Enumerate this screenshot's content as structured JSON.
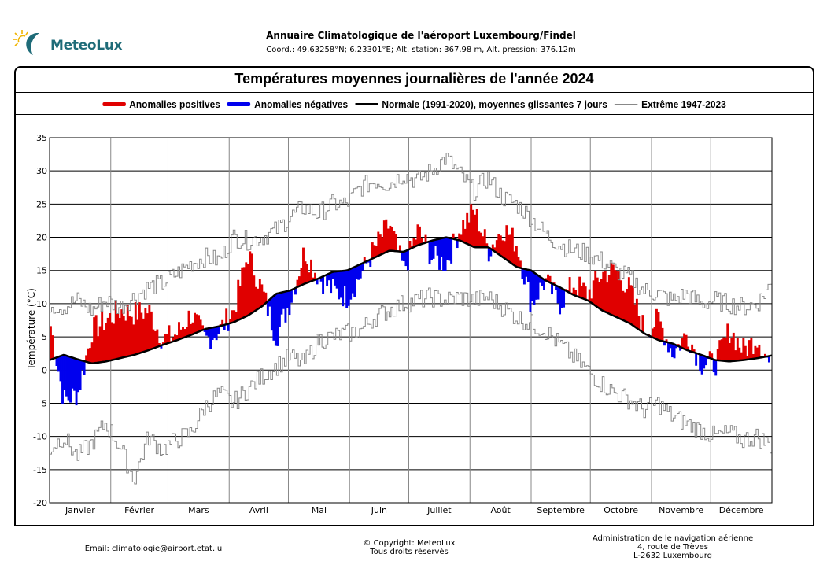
{
  "header": {
    "logo_text": "MeteoLux",
    "title": "Annuaire Climatologique de l'aéroport Luxembourg/Findel",
    "coordinates": "Coord.: 49.63258°N; 6.23301°E; Alt. station: 367.98 m, Alt. pression: 376.12m"
  },
  "footer": {
    "email": "Email: climatologie@airport.etat.lu",
    "copyright_line1": "© Copyright: MeteoLux",
    "copyright_line2": "Tous droits réservés",
    "address_line1": "Administration de le navigation aérienne",
    "address_line2": "4, route de Trèves",
    "address_line3": "L-2632 Luxembourg"
  },
  "chart_data": {
    "type": "bar",
    "title": "Températures moyennes journalières de l'année 2024",
    "xlabel": "",
    "ylabel": "Température (°C)",
    "ylim": [
      -20,
      35
    ],
    "yticks": [
      35,
      30,
      25,
      20,
      15,
      10,
      5,
      0,
      -5,
      -10,
      -15,
      -20
    ],
    "grid": true,
    "legend_position": "top",
    "legend": [
      {
        "label": "Anomalies positives",
        "color": "#e00000",
        "kind": "bar"
      },
      {
        "label": "Anomalies négatives",
        "color": "#0000ee",
        "kind": "bar"
      },
      {
        "label": "Normale (1991-2020), moyennes glissantes 7 jours",
        "color": "#000000",
        "kind": "line"
      },
      {
        "label": "Extrême 1947-2023",
        "color": "#888888",
        "kind": "step"
      }
    ],
    "categories": [
      "Janvier",
      "Février",
      "Mars",
      "Avril",
      "Mai",
      "Juin",
      "Juillet",
      "Août",
      "Septembre",
      "Octobre",
      "Novembre",
      "Décembre"
    ],
    "month_days": [
      31,
      29,
      31,
      30,
      31,
      30,
      31,
      31,
      30,
      31,
      30,
      31
    ],
    "description": "Daily mean temperatures 2024 as anomaly bars against 7-day smoothed normal; values sampled at weekly resolution (approx.)",
    "normal_weekly": [
      1.5,
      2.3,
      1.6,
      1.0,
      1.3,
      1.8,
      2.3,
      3.0,
      3.8,
      4.5,
      5.3,
      6.2,
      6.6,
      7.2,
      8.2,
      9.6,
      11.5,
      12.0,
      13.0,
      13.8,
      14.8,
      15.0,
      16.0,
      17.0,
      18.0,
      17.8,
      18.8,
      19.5,
      20.0,
      19.5,
      18.5,
      18.5,
      17.0,
      15.5,
      15.0,
      13.5,
      12.5,
      11.3,
      10.5,
      9.0,
      8.0,
      7.0,
      5.5,
      4.5,
      4.0,
      3.0,
      2.3,
      1.5,
      1.3,
      1.5,
      1.8,
      2.2
    ],
    "actual_weekly": [
      7.5,
      -4.5,
      -3.5,
      6.0,
      7.5,
      9.0,
      8.5,
      9.0,
      4.5,
      5.5,
      8.5,
      4.5,
      6.0,
      9.0,
      17.5,
      12.0,
      5.0,
      10.5,
      18.0,
      14.0,
      12.0,
      11.0,
      14.5,
      18.5,
      22.0,
      15.0,
      21.0,
      17.0,
      16.0,
      21.5,
      24.0,
      18.0,
      21.5,
      19.0,
      10.0,
      13.5,
      10.0,
      13.0,
      11.5,
      14.5,
      15.0,
      12.0,
      6.0,
      7.5,
      2.5,
      5.5,
      1.0,
      1.0,
      6.0,
      3.0,
      5.0,
      0.0
    ],
    "extreme_max_weekly": [
      10.0,
      9.5,
      10.5,
      9.0,
      10.5,
      9.5,
      11.0,
      12.5,
      13.0,
      14.5,
      16.0,
      17.0,
      16.5,
      20.0,
      19.5,
      20.0,
      21.0,
      23.0,
      24.5,
      23.5,
      25.0,
      25.0,
      27.5,
      28.5,
      28.0,
      29.5,
      28.5,
      30.0,
      32.0,
      29.5,
      27.0,
      29.0,
      26.0,
      25.0,
      23.0,
      20.5,
      19.0,
      18.0,
      17.5,
      16.5,
      15.0,
      14.0,
      12.0,
      11.5,
      10.5,
      11.5,
      10.0,
      10.5,
      10.0,
      9.5,
      10.0,
      13.0
    ],
    "extreme_min_weekly": [
      -12.0,
      -10.0,
      -13.0,
      -11.0,
      -8.0,
      -11.5,
      -16.5,
      -10.0,
      -12.0,
      -10.5,
      -9.5,
      -5.5,
      -3.5,
      -5.0,
      -3.0,
      -1.0,
      0.5,
      2.0,
      1.0,
      4.5,
      5.0,
      5.5,
      6.0,
      8.0,
      9.0,
      10.0,
      10.5,
      11.0,
      10.5,
      11.0,
      10.5,
      11.0,
      9.5,
      8.0,
      7.0,
      6.0,
      4.0,
      2.0,
      0.0,
      -2.0,
      -3.5,
      -4.5,
      -6.0,
      -5.0,
      -7.0,
      -8.0,
      -9.0,
      -10.0,
      -9.5,
      -10.5,
      -10.0,
      -11.5
    ]
  }
}
